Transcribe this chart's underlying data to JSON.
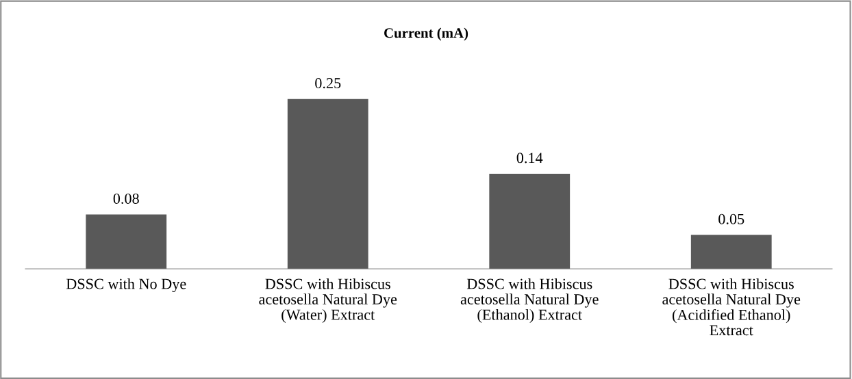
{
  "chart_data": {
    "type": "bar",
    "title": "Current (mA)",
    "categories": [
      "DSSC with No Dye",
      "DSSC with Hibiscus\nacetosella Natural Dye\n(Water) Extract",
      "DSSC with Hibiscus\nacetosella Natural Dye\n(Ethanol) Extract",
      "DSSC with Hibiscus\nacetosella Natural Dye\n(Acidified Ethanol)\nExtract"
    ],
    "values": [
      0.08,
      0.25,
      0.14,
      0.05
    ],
    "color": "#595959",
    "data_labels": true,
    "grid": false,
    "legend": false
  }
}
